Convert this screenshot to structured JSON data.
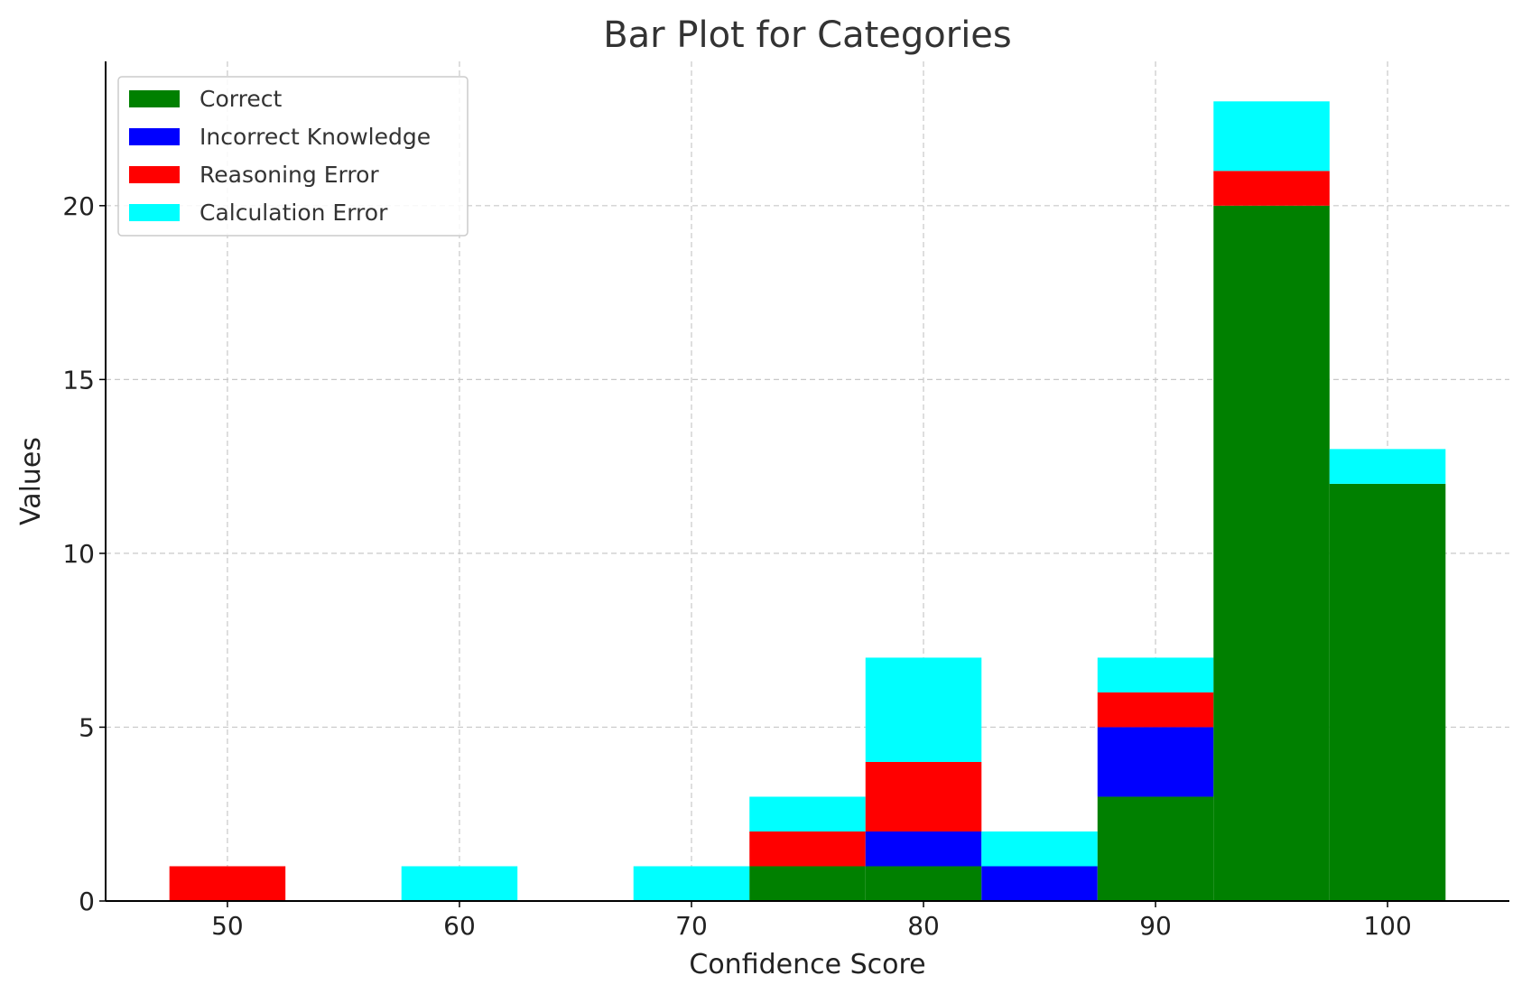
{
  "chart_data": {
    "type": "bar",
    "stacked": true,
    "title": "Bar Plot for Categories",
    "xlabel": "Confidence Score",
    "ylabel": "Values",
    "x": [
      50,
      60,
      70,
      75,
      80,
      85,
      90,
      95,
      100
    ],
    "bar_width": 5,
    "xlim": [
      44.75,
      105.25
    ],
    "ylim": [
      0,
      24.15
    ],
    "xticks": [
      50,
      60,
      70,
      80,
      90,
      100
    ],
    "yticks": [
      0,
      5,
      10,
      15,
      20
    ],
    "grid": true,
    "legend_position": "top-left",
    "series": [
      {
        "name": "Correct",
        "color": "#008000",
        "values": [
          0,
          0,
          0,
          1,
          1,
          0,
          3,
          20,
          12
        ]
      },
      {
        "name": "Incorrect Knowledge",
        "color": "#0000ff",
        "values": [
          0,
          0,
          0,
          0,
          1,
          1,
          2,
          0,
          0
        ]
      },
      {
        "name": "Reasoning Error",
        "color": "#ff0000",
        "values": [
          1,
          0,
          0,
          1,
          2,
          0,
          1,
          1,
          0
        ]
      },
      {
        "name": "Calculation Error",
        "color": "#00ffff",
        "values": [
          0,
          1,
          1,
          1,
          3,
          1,
          1,
          2,
          1
        ]
      }
    ]
  }
}
